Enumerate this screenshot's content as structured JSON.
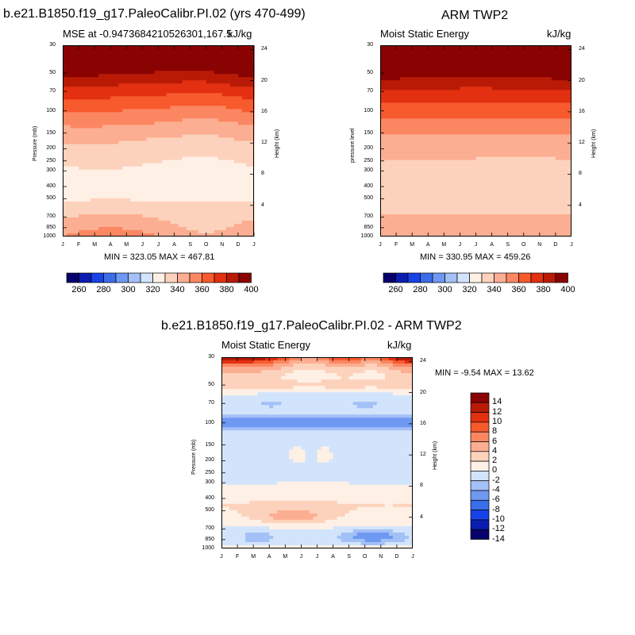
{
  "figure": {
    "left_title": "b.e21.B1850.f19_g17.PaleoCalibr.PI.02 (yrs 470-499)",
    "right_title": "ARM TWP2",
    "bottom_title": "b.e21.B1850.f19_g17.PaleoCalibr.PI.02 - ARM TWP2"
  },
  "axes": {
    "months": [
      "J",
      "F",
      "M",
      "A",
      "M",
      "J",
      "J",
      "A",
      "S",
      "O",
      "N",
      "D",
      "J"
    ],
    "pressure_ticks": [
      "30",
      "50",
      "70",
      "100",
      "150",
      "200",
      "250",
      "300",
      "400",
      "500",
      "700",
      "850",
      "1000"
    ],
    "pressure_values": [
      30,
      50,
      70,
      100,
      150,
      200,
      250,
      300,
      400,
      500,
      700,
      850,
      1000
    ],
    "height_ticks": [
      "24",
      "20",
      "16",
      "12",
      "8",
      "4"
    ],
    "height_values": [
      24,
      20,
      16,
      12,
      8,
      4
    ],
    "ylabel_left": "Pressure (mb)",
    "ylabel_pressure_level": "pressure level",
    "ylabel_right": "Height (km)"
  },
  "panel_left": {
    "subtitle_left": "MSE at -0.9473684210526301,167.5",
    "subtitle_right": "kJ/kg",
    "minmax": "MIN = 323.05 MAX = 467.81"
  },
  "panel_right": {
    "subtitle_left": "Moist Static Energy",
    "subtitle_right": "kJ/kg",
    "minmax": "MIN = 330.95 MAX = 459.26"
  },
  "panel_diff": {
    "subtitle_left": "Moist Static Energy",
    "subtitle_right": "kJ/kg",
    "minmax": "MIN =  -9.54 MAX =  13.62"
  },
  "colorbar_top": {
    "labels": [
      "260",
      "280",
      "300",
      "320",
      "340",
      "360",
      "380",
      "400"
    ],
    "colors": [
      "#08006b",
      "#0b1db0",
      "#1742e6",
      "#3b6de8",
      "#6f98f2",
      "#a3c0f7",
      "#d2e4fb",
      "#fff0e6",
      "#fdd2bd",
      "#fcae92",
      "#fb8762",
      "#f75a2d",
      "#e23010",
      "#b81a06",
      "#8a0303"
    ]
  },
  "colorbar_diff": {
    "labels": [
      "14",
      "12",
      "10",
      "8",
      "6",
      "4",
      "2",
      "0",
      "-2",
      "-4",
      "-6",
      "-8",
      "-10",
      "-12",
      "-14"
    ],
    "colors": [
      "#8a0303",
      "#b81a06",
      "#e23010",
      "#f75a2d",
      "#fb8762",
      "#fcae92",
      "#fdd2bd",
      "#fff0e6",
      "#d2e4fb",
      "#a3c0f7",
      "#6f98f2",
      "#3b6de8",
      "#1742e6",
      "#0b1db0",
      "#08006b"
    ]
  },
  "chart_data": [
    {
      "type": "heatmap",
      "title": "b.e21.B1850.f19_g17.PaleoCalibr.PI.02 (yrs 470-499)",
      "variable": "MSE at -0.9473684210526301,167.5",
      "units": "kJ/kg",
      "x": [
        "J",
        "F",
        "M",
        "A",
        "M",
        "J",
        "J",
        "A",
        "S",
        "O",
        "N",
        "D",
        "J"
      ],
      "y_pressure_mb": [
        30,
        50,
        70,
        100,
        150,
        200,
        250,
        300,
        400,
        500,
        700,
        850,
        1000
      ],
      "min": 323.05,
      "max": 467.81,
      "contour_levels": [
        260,
        270,
        280,
        290,
        300,
        310,
        320,
        330,
        340,
        350,
        360,
        370,
        380,
        390,
        400,
        410
      ],
      "ylabel": "Pressure (mb)",
      "ylabel_right": "Height (km)"
    },
    {
      "type": "heatmap",
      "title": "ARM TWP2",
      "variable": "Moist Static Energy",
      "units": "kJ/kg",
      "x": [
        "J",
        "F",
        "M",
        "A",
        "M",
        "J",
        "J",
        "A",
        "S",
        "O",
        "N",
        "D",
        "J"
      ],
      "y_pressure_mb": [
        30,
        50,
        70,
        100,
        150,
        200,
        250,
        300,
        400,
        500,
        700,
        850,
        1000
      ],
      "min": 330.95,
      "max": 459.26,
      "ylabel": "pressure level",
      "ylabel_right": "Height (km)"
    },
    {
      "type": "heatmap",
      "title": "b.e21.B1850.f19_g17.PaleoCalibr.PI.02 - ARM TWP2",
      "variable": "Moist Static Energy",
      "units": "kJ/kg",
      "x": [
        "J",
        "F",
        "M",
        "A",
        "M",
        "J",
        "J",
        "A",
        "S",
        "O",
        "N",
        "D",
        "J"
      ],
      "y_pressure_mb": [
        30,
        50,
        70,
        100,
        150,
        200,
        250,
        300,
        400,
        500,
        700,
        850,
        1000
      ],
      "min": -9.54,
      "max": 13.62,
      "contour_levels": [
        -14,
        -12,
        -10,
        -8,
        -6,
        -4,
        -2,
        0,
        2,
        4,
        6,
        8,
        10,
        12,
        14
      ],
      "ylabel": "Pressure (mb)",
      "ylabel_right": "Height (km)"
    }
  ]
}
